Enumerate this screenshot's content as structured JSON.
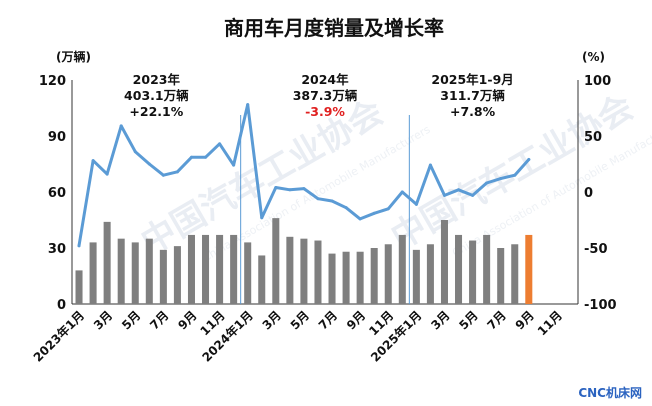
{
  "chart_data": {
    "type": "bar+line",
    "title": "商用车月度销量及增长率",
    "y_left_unit": "(万辆)",
    "y_right_unit": "(%)",
    "y_left_ticks": [
      "0",
      "30",
      "60",
      "90",
      "120"
    ],
    "y_right_ticks": [
      "-100",
      "-50",
      "0",
      "50",
      "100"
    ],
    "y_left_range": [
      0,
      120
    ],
    "y_right_range": [
      -100,
      100
    ],
    "x_tick_labels": [
      "2023年1月",
      "3月",
      "5月",
      "7月",
      "9月",
      "11月",
      "2024年1月",
      "3月",
      "5月",
      "7月",
      "9月",
      "11月",
      "2025年1月",
      "3月",
      "5月",
      "7月",
      "9月",
      "11月"
    ],
    "categories": [
      "2023-01",
      "2023-02",
      "2023-03",
      "2023-04",
      "2023-05",
      "2023-06",
      "2023-07",
      "2023-08",
      "2023-09",
      "2023-10",
      "2023-11",
      "2023-12",
      "2024-01",
      "2024-02",
      "2024-03",
      "2024-04",
      "2024-05",
      "2024-06",
      "2024-07",
      "2024-08",
      "2024-09",
      "2024-10",
      "2024-11",
      "2024-12",
      "2025-01",
      "2025-02",
      "2025-03",
      "2025-04",
      "2025-05",
      "2025-06",
      "2025-07",
      "2025-08",
      "2025-09",
      "2025-10",
      "2025-11",
      "2025-12"
    ],
    "series": [
      {
        "kind": "bar",
        "axis": "left",
        "color": "#7f7f7f",
        "highlight_color": "#ed7d31",
        "highlight_index": 32,
        "values": [
          18,
          33,
          44,
          35,
          33,
          35,
          29,
          31,
          37,
          37,
          37,
          37,
          33,
          26,
          46,
          36,
          35,
          34,
          27,
          28,
          28,
          30,
          32,
          37,
          29,
          32,
          45,
          37,
          34,
          37,
          30,
          32,
          37,
          null,
          null,
          null
        ]
      },
      {
        "kind": "line",
        "axis": "right",
        "color": "#5b9bd5",
        "values": [
          -48,
          28,
          16,
          59,
          36,
          25,
          15,
          18,
          31,
          31,
          43,
          24,
          78,
          -23,
          4,
          2,
          3,
          -6,
          -8,
          -14,
          -24,
          -19,
          -15,
          0,
          -11,
          24,
          -3,
          2,
          -3,
          8,
          12,
          15,
          29,
          null,
          null,
          null
        ]
      }
    ],
    "dividers_after_index": [
      11,
      23
    ],
    "annotations": [
      {
        "lines": [
          "2023年",
          "403.1万辆",
          "+22.1%"
        ],
        "red_line": -1,
        "period_start": 0,
        "period_end": 11
      },
      {
        "lines": [
          "2024年",
          "387.3万辆",
          "-3.9%"
        ],
        "red_line": 2,
        "period_start": 12,
        "period_end": 23
      },
      {
        "lines": [
          "2025年1-9月",
          "311.7万辆",
          "+7.8%"
        ],
        "red_line": -1,
        "period_start": 24,
        "period_end": 32
      }
    ]
  },
  "watermark": {
    "main": "中国汽车工业协会",
    "sub": "China Association of Automobile Manufacturers"
  },
  "source_label": "CNC机床网"
}
